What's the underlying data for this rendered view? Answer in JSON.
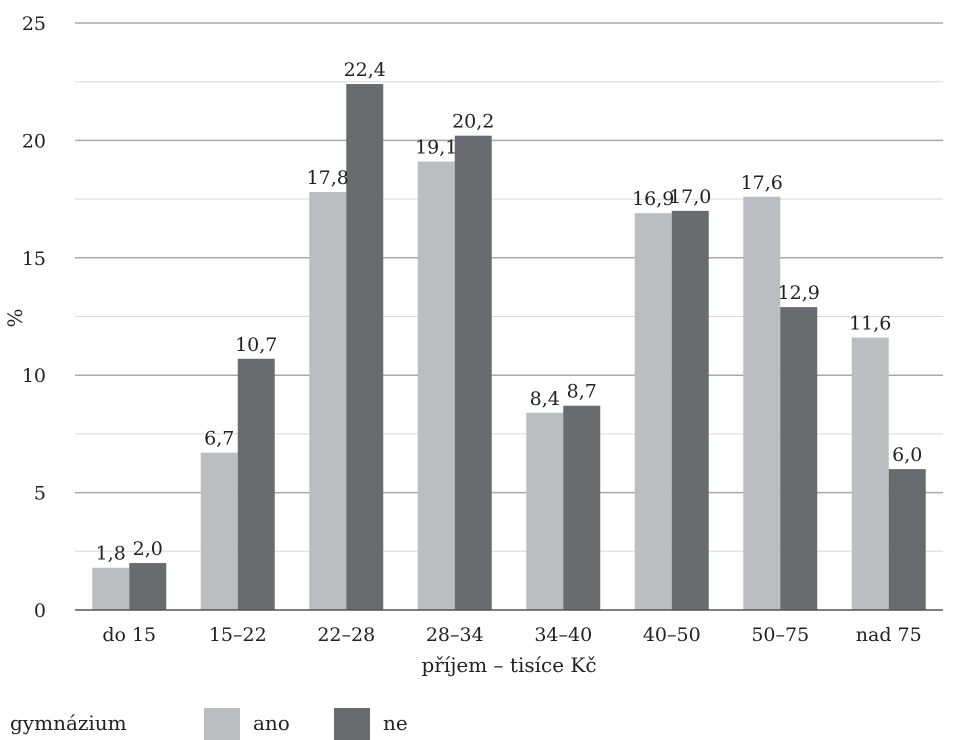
{
  "chart_data": {
    "type": "bar",
    "categories": [
      "do 15",
      "15–22",
      "22–28",
      "28–34",
      "34–40",
      "40–50",
      "50–75",
      "nad 75"
    ],
    "series": [
      {
        "name": "ano",
        "values": [
          1.8,
          6.7,
          17.8,
          19.1,
          8.4,
          16.9,
          17.6,
          11.6
        ],
        "value_labels": [
          "1,8",
          "6,7",
          "17,8",
          "19,1",
          "8,4",
          "16,9",
          "17,6",
          "11,6"
        ],
        "color": "#bcbdc0"
      },
      {
        "name": "ne",
        "values": [
          2.0,
          10.7,
          22.4,
          20.2,
          8.7,
          17.0,
          12.9,
          6.0
        ],
        "value_labels": [
          "2,0",
          "10,7",
          "22,4",
          "20,2",
          "8,7",
          "17,0",
          "12,9",
          "6,0"
        ],
        "color": "#6a6b6e"
      }
    ],
    "title": "",
    "xlabel": "příjem – tisíce Kč",
    "ylabel": "%",
    "ylim": [
      0,
      25
    ],
    "yticks": [
      0,
      5,
      10,
      15,
      20,
      25
    ],
    "yticks_labels": [
      "0",
      "5",
      "10",
      "15",
      "20",
      "25"
    ],
    "grid": true,
    "legend_title": "gymnázium",
    "legend_position": "bottom-left"
  }
}
